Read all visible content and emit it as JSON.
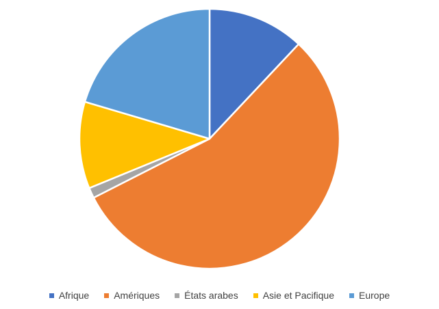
{
  "chart_data": {
    "type": "pie",
    "categories": [
      "Afrique",
      "Amériques",
      "États arabes",
      "Asie et Pacifique",
      "Europe"
    ],
    "values": [
      12.0,
      55.5,
      1.3,
      10.8,
      20.4
    ],
    "colors": [
      "#4472c4",
      "#ed7d31",
      "#a5a5a5",
      "#ffc000",
      "#5b9bd5"
    ],
    "start_angle": "12 o'clock",
    "direction": "clockwise",
    "legend_position": "bottom"
  }
}
